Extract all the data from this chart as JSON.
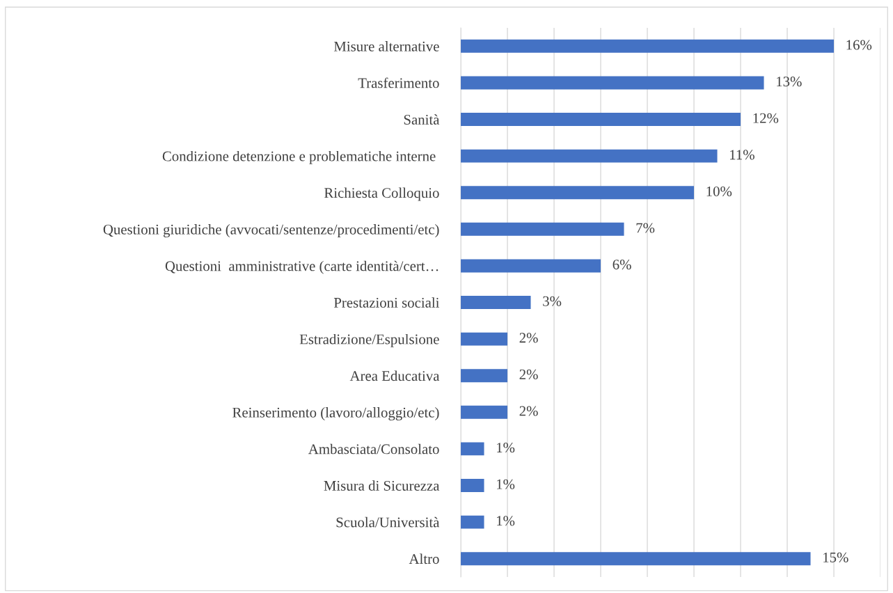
{
  "chart_data": {
    "type": "bar",
    "orientation": "horizontal",
    "categories": [
      "Misure alternative",
      "Trasferimento",
      "Sanità",
      "Condizione detenzione e problematiche interne ",
      "Richiesta Colloquio",
      "Questioni giuridiche (avvocati/sentenze/procedimenti/etc)",
      "Questioni  amministrative (carte identità/cert…",
      "Prestazioni sociali",
      "Estradizione/Espulsione",
      "Area Educativa",
      "Reinserimento (lavoro/alloggio/etc)",
      "Ambasciata/Consolato",
      "Misura di Sicurezza",
      "Scuola/Università",
      "Altro"
    ],
    "values": [
      16,
      13,
      12,
      11,
      10,
      7,
      6,
      3,
      2,
      2,
      2,
      1,
      1,
      1,
      15
    ],
    "value_labels": [
      "16%",
      "13%",
      "12%",
      "11%",
      "10%",
      "7%",
      "6%",
      "3%",
      "2%",
      "2%",
      "2%",
      "1%",
      "1%",
      "1%",
      "15%"
    ],
    "color": "#4472c4",
    "xlim": [
      0,
      18
    ],
    "xticks": [
      {
        "value": 0,
        "label": null
      },
      {
        "value": 2,
        "label": null
      },
      {
        "value": 4,
        "label": null
      },
      {
        "value": 6,
        "label": null
      },
      {
        "value": 8,
        "label": null
      },
      {
        "value": 10,
        "label": null
      },
      {
        "value": 12,
        "label": null
      },
      {
        "value": 14,
        "label": null
      },
      {
        "value": 16,
        "label": null
      },
      {
        "value": 18,
        "label": null
      }
    ],
    "tick_labels": "y",
    "grid": "x",
    "legend": false
  }
}
